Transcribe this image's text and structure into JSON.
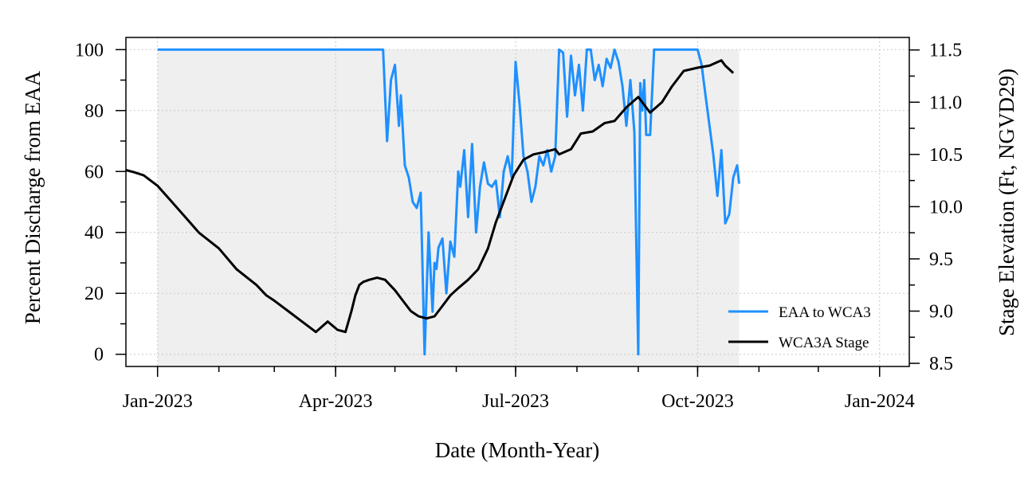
{
  "chart_data": {
    "type": "line",
    "title": "",
    "xlabel": "Date (Month-Year)",
    "ylabel_left": "Percent Discharge from EAA",
    "ylabel_right": "Stage Elevation (Ft, NGVD29)",
    "xlim": [
      "2022-12-16",
      "2024-01-16"
    ],
    "ylim_left": [
      -4,
      104
    ],
    "ylim_right": [
      8.47,
      11.62
    ],
    "x_ticks": [
      "2023-01-01",
      "2023-04-01",
      "2023-07-01",
      "2023-10-01",
      "2024-01-01"
    ],
    "x_tick_labels": [
      "Jan-2023",
      "Apr-2023",
      "Jul-2023",
      "Oct-2023",
      "Jan-2024"
    ],
    "y_ticks_left": [
      0,
      20,
      40,
      60,
      80,
      100
    ],
    "y_tick_labels_left": [
      "0",
      "20",
      "40",
      "60",
      "80",
      "100"
    ],
    "y_ticks_right": [
      8.5,
      9.0,
      9.5,
      10.0,
      10.5,
      11.0,
      11.5
    ],
    "y_tick_labels_right": [
      "8.5",
      "9.0",
      "9.5",
      "10.0",
      "10.5",
      "11.0",
      "11.5"
    ],
    "grid": true,
    "shaded_period": [
      "2023-01-01",
      "2023-10-22"
    ],
    "legend_position": "bottom-right",
    "series": [
      {
        "name": "EAA to WCA3",
        "axis": "left",
        "color": "#1E90FF",
        "x": [
          "2023-01-01",
          "2023-04-25",
          "2023-04-27",
          "2023-04-29",
          "2023-05-01",
          "2023-05-03",
          "2023-05-04",
          "2023-05-06",
          "2023-05-08",
          "2023-05-10",
          "2023-05-12",
          "2023-05-14",
          "2023-05-16",
          "2023-05-18",
          "2023-05-20",
          "2023-05-21",
          "2023-05-22",
          "2023-05-23",
          "2023-05-25",
          "2023-05-27",
          "2023-05-29",
          "2023-05-31",
          "2023-06-02",
          "2023-06-03",
          "2023-06-05",
          "2023-06-07",
          "2023-06-09",
          "2023-06-11",
          "2023-06-13",
          "2023-06-15",
          "2023-06-17",
          "2023-06-19",
          "2023-06-21",
          "2023-06-23",
          "2023-06-25",
          "2023-06-27",
          "2023-06-29",
          "2023-07-01",
          "2023-07-03",
          "2023-07-05",
          "2023-07-07",
          "2023-07-09",
          "2023-07-11",
          "2023-07-13",
          "2023-07-15",
          "2023-07-17",
          "2023-07-19",
          "2023-07-21",
          "2023-07-23",
          "2023-07-25",
          "2023-07-27",
          "2023-07-29",
          "2023-07-31",
          "2023-08-02",
          "2023-08-04",
          "2023-08-06",
          "2023-08-08",
          "2023-08-10",
          "2023-08-12",
          "2023-08-14",
          "2023-08-16",
          "2023-08-18",
          "2023-08-20",
          "2023-08-22",
          "2023-08-24",
          "2023-08-26",
          "2023-08-28",
          "2023-08-30",
          "2023-09-01",
          "2023-09-02",
          "2023-09-03",
          "2023-09-04",
          "2023-09-05",
          "2023-09-07",
          "2023-09-09",
          "2023-09-11",
          "2023-09-13",
          "2023-09-15",
          "2023-09-17",
          "2023-09-19",
          "2023-10-01",
          "2023-10-03",
          "2023-10-05",
          "2023-10-07",
          "2023-10-09",
          "2023-10-11",
          "2023-10-13",
          "2023-10-15",
          "2023-10-17",
          "2023-10-19",
          "2023-10-21",
          "2023-10-22"
        ],
        "y": [
          100,
          100,
          70,
          90,
          95,
          75,
          85,
          62,
          58,
          50,
          48,
          53,
          0,
          40,
          14,
          30,
          28,
          35,
          38,
          20,
          37,
          32,
          60,
          55,
          67,
          45,
          69,
          40,
          55,
          63,
          56,
          55,
          57,
          45,
          60,
          65,
          58,
          96,
          82,
          65,
          60,
          50,
          55,
          65,
          62,
          67,
          60,
          65,
          100,
          99,
          78,
          98,
          85,
          95,
          80,
          100,
          100,
          90,
          95,
          88,
          97,
          94,
          100,
          96,
          88,
          75,
          90,
          73,
          0,
          89,
          80,
          90,
          72,
          72,
          100,
          100,
          100,
          100,
          100,
          100,
          100,
          95,
          85,
          75,
          65,
          52,
          67,
          43,
          46,
          58,
          62,
          56
        ]
      },
      {
        "name": "WCA3A Stage",
        "axis": "right",
        "color": "#000000",
        "x": [
          "2022-12-16",
          "2022-12-20",
          "2022-12-25",
          "2023-01-01",
          "2023-01-08",
          "2023-01-15",
          "2023-01-22",
          "2023-02-01",
          "2023-02-10",
          "2023-02-20",
          "2023-02-25",
          "2023-03-01",
          "2023-03-08",
          "2023-03-15",
          "2023-03-22",
          "2023-03-28",
          "2023-04-02",
          "2023-04-06",
          "2023-04-09",
          "2023-04-11",
          "2023-04-13",
          "2023-04-15",
          "2023-04-18",
          "2023-04-22",
          "2023-04-26",
          "2023-05-01",
          "2023-05-05",
          "2023-05-09",
          "2023-05-13",
          "2023-05-17",
          "2023-05-21",
          "2023-05-25",
          "2023-05-29",
          "2023-06-02",
          "2023-06-07",
          "2023-06-12",
          "2023-06-17",
          "2023-06-21",
          "2023-06-25",
          "2023-06-30",
          "2023-07-05",
          "2023-07-10",
          "2023-07-15",
          "2023-07-21",
          "2023-07-23",
          "2023-07-29",
          "2023-08-03",
          "2023-08-09",
          "2023-08-15",
          "2023-08-20",
          "2023-08-26",
          "2023-09-01",
          "2023-09-07",
          "2023-09-13",
          "2023-09-18",
          "2023-09-24",
          "2023-10-01",
          "2023-10-07",
          "2023-10-13",
          "2023-10-15",
          "2023-10-19"
        ],
        "y": [
          10.35,
          10.33,
          10.3,
          10.2,
          10.05,
          9.9,
          9.75,
          9.6,
          9.4,
          9.25,
          9.15,
          9.1,
          9.0,
          8.9,
          8.8,
          8.9,
          8.82,
          8.8,
          9.0,
          9.15,
          9.25,
          9.28,
          9.3,
          9.32,
          9.3,
          9.2,
          9.1,
          9.0,
          8.95,
          8.93,
          8.95,
          9.05,
          9.15,
          9.22,
          9.3,
          9.4,
          9.6,
          9.85,
          10.05,
          10.3,
          10.45,
          10.5,
          10.52,
          10.55,
          10.5,
          10.55,
          10.7,
          10.72,
          10.8,
          10.82,
          10.95,
          11.05,
          10.9,
          11.0,
          11.15,
          11.3,
          11.33,
          11.35,
          11.4,
          11.35,
          11.28
        ]
      }
    ]
  }
}
